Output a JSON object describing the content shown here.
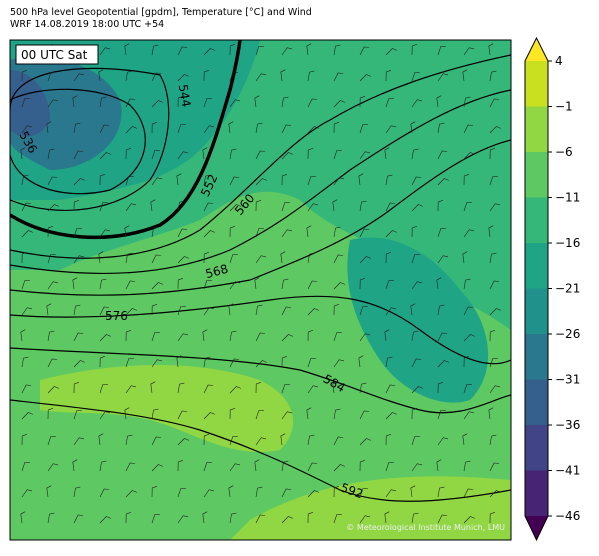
{
  "header": {
    "title": "500 hPa level Geopotential [gpdm], Temperature [°C] and Wind",
    "subtitle": "WRF 14.08.2019 18:00 UTC +54"
  },
  "map": {
    "time_label": "00 UTC Sat",
    "contour_labels": [
      "536",
      "544",
      "552",
      "560",
      "568",
      "576",
      "584",
      "592"
    ],
    "credit": "© Meteorological Institute Munich, LMU"
  },
  "colorbar": {
    "labels": [
      "4",
      "−1",
      "−6",
      "−11",
      "−16",
      "−21",
      "−26",
      "−31",
      "−36",
      "−41",
      "−46"
    ],
    "colors": [
      "#fde725",
      "#c8e020",
      "#90d743",
      "#5ec962",
      "#35b779",
      "#20a486",
      "#21918c",
      "#2a788e",
      "#355f8d",
      "#414487",
      "#482475",
      "#440154"
    ]
  }
}
